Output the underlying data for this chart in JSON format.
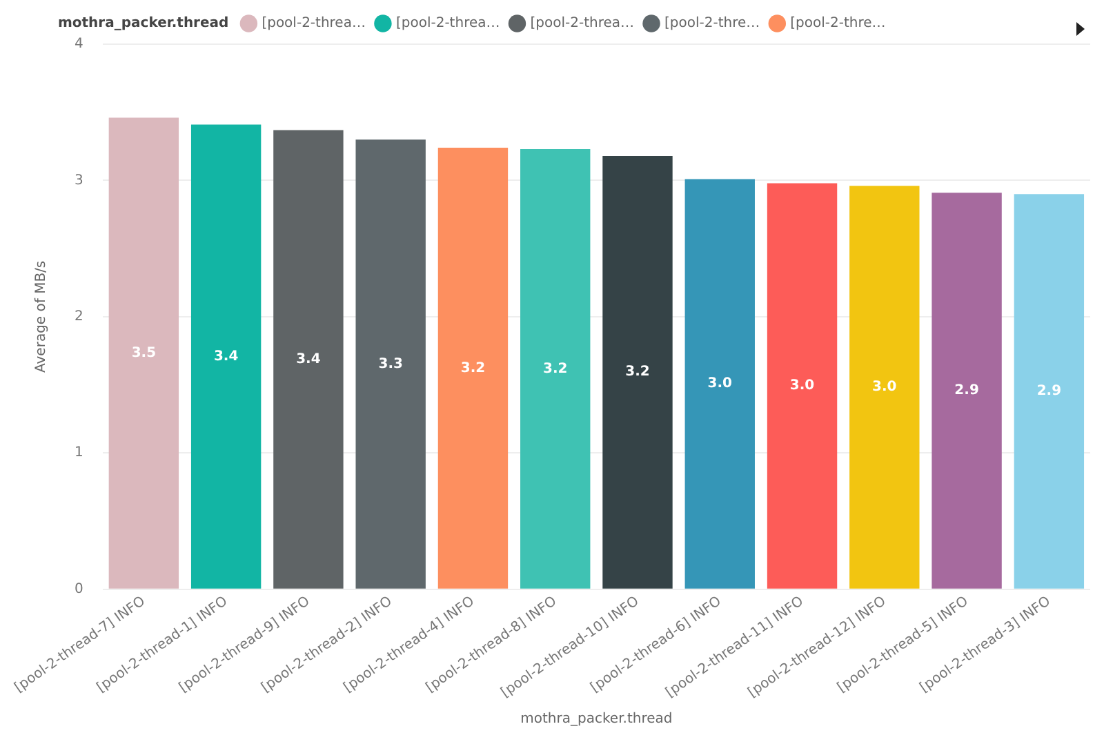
{
  "chart_data": {
    "type": "bar",
    "xlabel": "mothra_packer.thread",
    "ylabel": "Average of MB/s",
    "legend_title": "mothra_packer.thread",
    "legend": "top left",
    "categories": [
      "[pool-2-thread-7] INFO",
      "[pool-2-thread-1] INFO",
      "[pool-2-thread-9] INFO",
      "[pool-2-thread-2] INFO",
      "[pool-2-thread-4] INFO",
      "[pool-2-thread-8] INFO",
      "[pool-2-thread-10] INFO",
      "[pool-2-thread-6] INFO",
      "[pool-2-thread-11] INFO",
      "[pool-2-thread-12] INFO",
      "[pool-2-thread-5] INFO",
      "[pool-2-thread-3] INFO"
    ],
    "series": [
      {
        "name": "[pool-2-threa…",
        "color": "#dbb8bd",
        "values": [
          3.46,
          null,
          null,
          null,
          null,
          null,
          null,
          null,
          null,
          null,
          null,
          null
        ],
        "value_labels": [
          "3.5",
          null,
          null,
          null,
          null,
          null,
          null,
          null,
          null,
          null,
          null,
          null
        ]
      },
      {
        "name": "[pool-2-threa…",
        "color": "#12b5a4",
        "values": [
          null,
          3.41,
          null,
          null,
          null,
          null,
          null,
          null,
          null,
          null,
          null,
          null
        ],
        "value_labels": [
          null,
          "3.4",
          null,
          null,
          null,
          null,
          null,
          null,
          null,
          null,
          null,
          null
        ]
      },
      {
        "name": "[pool-2-threa…",
        "color": "#5f6466",
        "values": [
          null,
          null,
          3.37,
          null,
          null,
          null,
          null,
          null,
          null,
          null,
          null,
          null
        ],
        "value_labels": [
          null,
          null,
          "3.4",
          null,
          null,
          null,
          null,
          null,
          null,
          null,
          null,
          null
        ]
      },
      {
        "name": "[pool-2-thre…",
        "color": "#5f686c",
        "values": [
          null,
          null,
          null,
          3.3,
          null,
          null,
          null,
          null,
          null,
          null,
          null,
          null
        ],
        "value_labels": [
          null,
          null,
          null,
          "3.3",
          null,
          null,
          null,
          null,
          null,
          null,
          null,
          null
        ]
      },
      {
        "name": "[pool-2-thre…",
        "color": "#fd8f5f",
        "values": [
          null,
          null,
          null,
          null,
          3.24,
          null,
          null,
          null,
          null,
          null,
          null,
          null
        ],
        "value_labels": [
          null,
          null,
          null,
          null,
          "3.2",
          null,
          null,
          null,
          null,
          null,
          null,
          null
        ]
      },
      {
        "color": "#3fc2b3",
        "values": [
          null,
          null,
          null,
          null,
          null,
          3.23,
          null,
          null,
          null,
          null,
          null,
          null
        ],
        "value_labels": [
          null,
          null,
          null,
          null,
          null,
          "3.2",
          null,
          null,
          null,
          null,
          null,
          null
        ]
      },
      {
        "color": "#354347",
        "values": [
          null,
          null,
          null,
          null,
          null,
          null,
          3.18,
          null,
          null,
          null,
          null,
          null
        ],
        "value_labels": [
          null,
          null,
          null,
          null,
          null,
          null,
          "3.2",
          null,
          null,
          null,
          null,
          null
        ]
      },
      {
        "color": "#3596b7",
        "values": [
          null,
          null,
          null,
          null,
          null,
          null,
          null,
          3.01,
          null,
          null,
          null,
          null
        ],
        "value_labels": [
          null,
          null,
          null,
          null,
          null,
          null,
          null,
          "3.0",
          null,
          null,
          null,
          null
        ]
      },
      {
        "color": "#fd5c58",
        "values": [
          null,
          null,
          null,
          null,
          null,
          null,
          null,
          null,
          2.98,
          null,
          null,
          null
        ],
        "value_labels": [
          null,
          null,
          null,
          null,
          null,
          null,
          null,
          null,
          "3.0",
          null,
          null,
          null
        ]
      },
      {
        "color": "#f2c511",
        "values": [
          null,
          null,
          null,
          null,
          null,
          null,
          null,
          null,
          null,
          2.96,
          null,
          null
        ],
        "value_labels": [
          null,
          null,
          null,
          null,
          null,
          null,
          null,
          null,
          null,
          "3.0",
          null,
          null
        ]
      },
      {
        "color": "#a66a9e",
        "values": [
          null,
          null,
          null,
          null,
          null,
          null,
          null,
          null,
          null,
          null,
          2.91,
          null
        ],
        "value_labels": [
          null,
          null,
          null,
          null,
          null,
          null,
          null,
          null,
          null,
          null,
          "2.9",
          null
        ]
      },
      {
        "color": "#8ad1e9",
        "values": [
          null,
          null,
          null,
          null,
          null,
          null,
          null,
          null,
          null,
          null,
          null,
          2.9
        ],
        "value_labels": [
          null,
          null,
          null,
          null,
          null,
          null,
          null,
          null,
          null,
          null,
          null,
          "2.9"
        ]
      }
    ],
    "ylim": [
      0,
      4
    ],
    "yticks": [
      0,
      1,
      2,
      3,
      4
    ],
    "grid": "y"
  }
}
